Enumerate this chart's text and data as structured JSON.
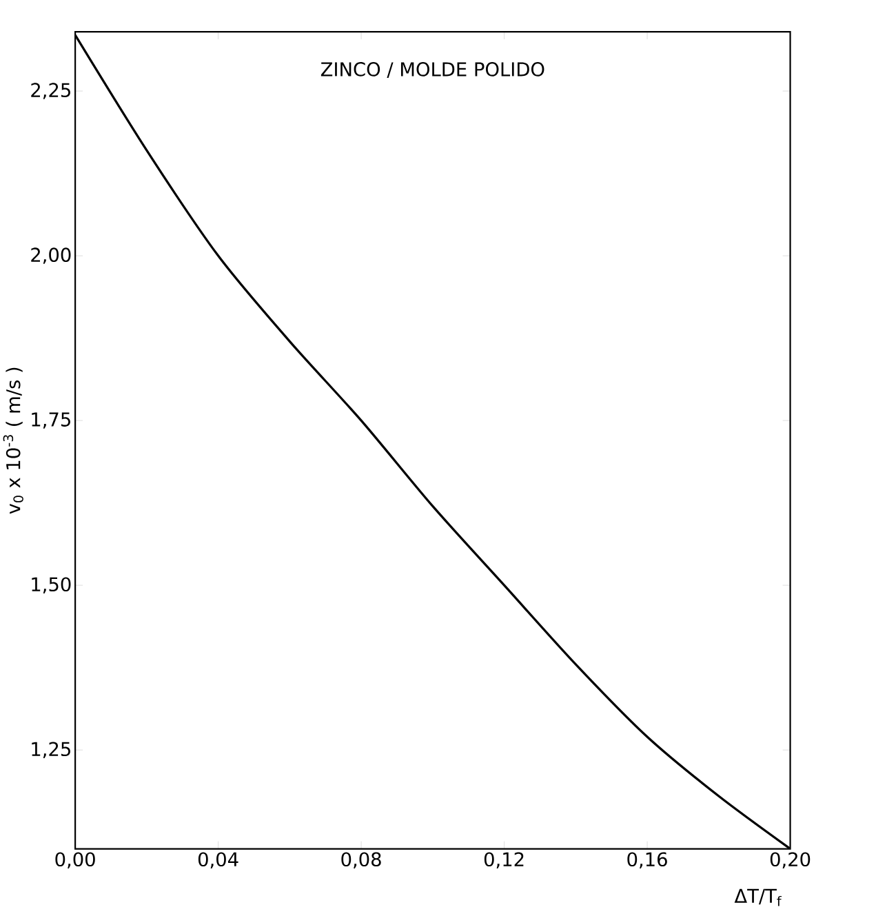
{
  "chart_data": {
    "type": "line",
    "title": "ZINCO / MOLDE POLIDO",
    "xlabel": "ΔT/T$_{f}$",
    "ylabel": "v$_{0}$ x 10$^{-3}$ ( m/s )",
    "x": [
      0,
      0.02,
      0.04,
      0.06,
      0.08,
      0.1,
      0.12,
      0.14,
      0.16,
      0.18,
      0.2
    ],
    "series": [
      {
        "color": "#000000",
        "values": [
          2.335,
          2.16,
          2.0,
          1.87,
          1.75,
          1.62,
          1.5,
          1.38,
          1.27,
          1.18,
          1.1
        ]
      }
    ],
    "xlim": [
      0,
      0.2
    ],
    "ylim": [
      1.1,
      2.34
    ],
    "xticks": [
      {
        "value": 0,
        "label": "0,00"
      },
      {
        "value": 0.04,
        "label": "0,04"
      },
      {
        "value": 0.08,
        "label": "0,08"
      },
      {
        "value": 0.12,
        "label": "0,12"
      },
      {
        "value": 0.16,
        "label": "0,16"
      },
      {
        "value": 0.2,
        "label": "0,20"
      }
    ],
    "yticks": [
      {
        "value": 1.25,
        "label": "1,25"
      },
      {
        "value": 1.5,
        "label": "1,50"
      },
      {
        "value": 1.75,
        "label": "1,75"
      },
      {
        "value": 2.0,
        "label": "2,00"
      },
      {
        "value": 2.25,
        "label": "2,25"
      }
    ],
    "grid": false,
    "marker": "none",
    "line_style": "solid"
  }
}
